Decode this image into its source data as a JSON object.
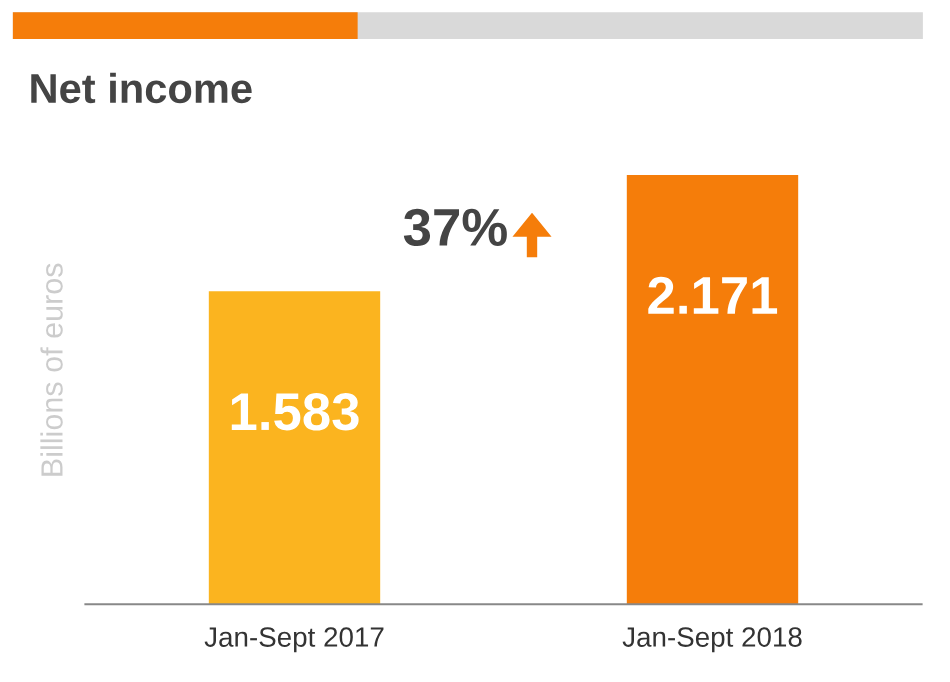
{
  "chart_data": {
    "type": "bar",
    "title": "Net income",
    "ylabel": "Billions of euros",
    "categories": [
      "Jan-Sept 2017",
      "Jan-Sept 2018"
    ],
    "values": [
      1.583,
      2.171
    ],
    "colors": [
      "#fbb41f",
      "#f57d0a"
    ],
    "data_labels": true,
    "annotations": [
      "37%"
    ],
    "grid": false,
    "legend": false
  }
}
